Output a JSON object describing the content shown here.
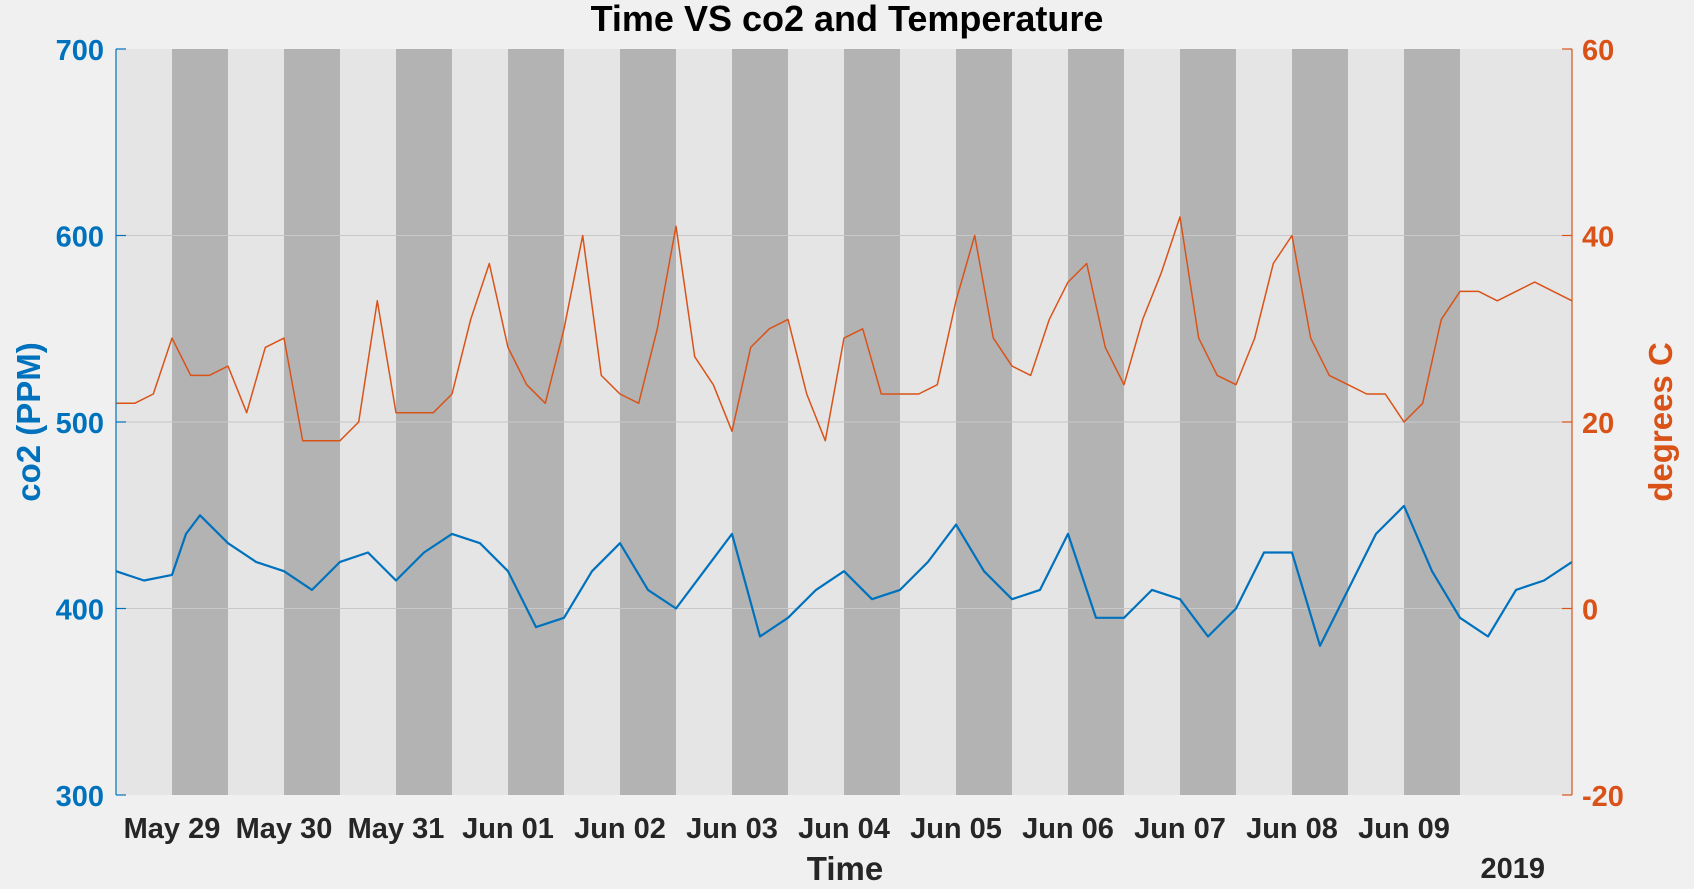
{
  "chart_data": {
    "type": "line",
    "title": "Time VS co2 and Temperature",
    "xlabel": "Time",
    "x_year_label": "2019",
    "x_range": [
      "2019-05-28 12:00",
      "2019-06-10 12:00"
    ],
    "x_ticks": [
      {
        "date": "2019-05-29",
        "label": "May 29"
      },
      {
        "date": "2019-05-30",
        "label": "May 30"
      },
      {
        "date": "2019-05-31",
        "label": "May 31"
      },
      {
        "date": "2019-06-01",
        "label": "Jun 01"
      },
      {
        "date": "2019-06-02",
        "label": "Jun 02"
      },
      {
        "date": "2019-06-03",
        "label": "Jun 03"
      },
      {
        "date": "2019-06-04",
        "label": "Jun 04"
      },
      {
        "date": "2019-06-05",
        "label": "Jun 05"
      },
      {
        "date": "2019-06-06",
        "label": "Jun 06"
      },
      {
        "date": "2019-06-07",
        "label": "Jun 07"
      },
      {
        "date": "2019-06-08",
        "label": "Jun 08"
      },
      {
        "date": "2019-06-09",
        "label": "Jun 09"
      }
    ],
    "night_shading": [
      [
        "2019-05-29 00:00",
        "2019-05-29 12:00"
      ],
      [
        "2019-05-30 00:00",
        "2019-05-30 12:00"
      ],
      [
        "2019-05-31 00:00",
        "2019-05-31 12:00"
      ],
      [
        "2019-06-01 00:00",
        "2019-06-01 12:00"
      ],
      [
        "2019-06-02 00:00",
        "2019-06-02 12:00"
      ],
      [
        "2019-06-03 00:00",
        "2019-06-03 12:00"
      ],
      [
        "2019-06-04 00:00",
        "2019-06-04 12:00"
      ],
      [
        "2019-06-05 00:00",
        "2019-06-05 12:00"
      ],
      [
        "2019-06-06 00:00",
        "2019-06-06 12:00"
      ],
      [
        "2019-06-07 00:00",
        "2019-06-07 12:00"
      ],
      [
        "2019-06-08 00:00",
        "2019-06-08 12:00"
      ],
      [
        "2019-06-09 00:00",
        "2019-06-09 12:00"
      ]
    ],
    "y_left": {
      "label": "co2 (PPM)",
      "lim": [
        300,
        700
      ],
      "ticks": [
        300,
        400,
        500,
        600,
        700
      ],
      "color": "#0072bd"
    },
    "y_right": {
      "label": "degrees C",
      "lim": [
        -20,
        60
      ],
      "ticks": [
        -20,
        0,
        20,
        40,
        60
      ],
      "color": "#d95319"
    },
    "grid": true,
    "colors": {
      "day_band": "#e5e5e5",
      "night_band": "#b3b3b3",
      "grid": "#c8c8c8"
    },
    "series": [
      {
        "name": "co2",
        "axis": "left",
        "x": [
          "2019-05-28 12:00",
          "2019-05-28 18:00",
          "2019-05-29 00:00",
          "2019-05-29 03:00",
          "2019-05-29 06:00",
          "2019-05-29 12:00",
          "2019-05-29 18:00",
          "2019-05-30 00:00",
          "2019-05-30 06:00",
          "2019-05-30 12:00",
          "2019-05-30 18:00",
          "2019-05-31 00:00",
          "2019-05-31 06:00",
          "2019-05-31 12:00",
          "2019-05-31 18:00",
          "2019-06-01 00:00",
          "2019-06-01 06:00",
          "2019-06-01 12:00",
          "2019-06-01 18:00",
          "2019-06-02 00:00",
          "2019-06-02 06:00",
          "2019-06-02 12:00",
          "2019-06-02 18:00",
          "2019-06-03 00:00",
          "2019-06-03 06:00",
          "2019-06-03 12:00",
          "2019-06-03 18:00",
          "2019-06-04 00:00",
          "2019-06-04 06:00",
          "2019-06-04 12:00",
          "2019-06-04 18:00",
          "2019-06-05 00:00",
          "2019-06-05 06:00",
          "2019-06-05 12:00",
          "2019-06-05 18:00",
          "2019-06-06 00:00",
          "2019-06-06 06:00",
          "2019-06-06 12:00",
          "2019-06-06 18:00",
          "2019-06-07 00:00",
          "2019-06-07 06:00",
          "2019-06-07 12:00",
          "2019-06-07 18:00",
          "2019-06-08 00:00",
          "2019-06-08 06:00",
          "2019-06-08 12:00",
          "2019-06-08 18:00",
          "2019-06-09 00:00",
          "2019-06-09 06:00",
          "2019-06-09 12:00",
          "2019-06-09 18:00",
          "2019-06-10 00:00",
          "2019-06-10 06:00",
          "2019-06-10 12:00"
        ],
        "values": [
          420,
          415,
          418,
          440,
          450,
          435,
          425,
          420,
          410,
          425,
          430,
          415,
          430,
          440,
          435,
          420,
          390,
          395,
          420,
          435,
          410,
          400,
          420,
          440,
          385,
          395,
          410,
          420,
          405,
          410,
          425,
          445,
          420,
          405,
          410,
          440,
          395,
          395,
          410,
          405,
          385,
          400,
          430,
          430,
          380,
          410,
          440,
          455,
          420,
          395,
          385,
          410,
          415,
          425
        ]
      },
      {
        "name": "degrees C",
        "axis": "right",
        "x": [
          "2019-05-28 12:00",
          "2019-05-28 16:00",
          "2019-05-28 20:00",
          "2019-05-29 00:00",
          "2019-05-29 04:00",
          "2019-05-29 08:00",
          "2019-05-29 12:00",
          "2019-05-29 16:00",
          "2019-05-29 20:00",
          "2019-05-30 00:00",
          "2019-05-30 04:00",
          "2019-05-30 08:00",
          "2019-05-30 12:00",
          "2019-05-30 16:00",
          "2019-05-30 20:00",
          "2019-05-31 00:00",
          "2019-05-31 04:00",
          "2019-05-31 08:00",
          "2019-05-31 12:00",
          "2019-05-31 16:00",
          "2019-05-31 20:00",
          "2019-06-01 00:00",
          "2019-06-01 04:00",
          "2019-06-01 08:00",
          "2019-06-01 12:00",
          "2019-06-01 16:00",
          "2019-06-01 20:00",
          "2019-06-02 00:00",
          "2019-06-02 04:00",
          "2019-06-02 08:00",
          "2019-06-02 12:00",
          "2019-06-02 16:00",
          "2019-06-02 20:00",
          "2019-06-03 00:00",
          "2019-06-03 04:00",
          "2019-06-03 08:00",
          "2019-06-03 12:00",
          "2019-06-03 16:00",
          "2019-06-03 20:00",
          "2019-06-04 00:00",
          "2019-06-04 04:00",
          "2019-06-04 08:00",
          "2019-06-04 12:00",
          "2019-06-04 16:00",
          "2019-06-04 20:00",
          "2019-06-05 00:00",
          "2019-06-05 04:00",
          "2019-06-05 08:00",
          "2019-06-05 12:00",
          "2019-06-05 16:00",
          "2019-06-05 20:00",
          "2019-06-06 00:00",
          "2019-06-06 04:00",
          "2019-06-06 08:00",
          "2019-06-06 12:00",
          "2019-06-06 16:00",
          "2019-06-06 20:00",
          "2019-06-07 00:00",
          "2019-06-07 04:00",
          "2019-06-07 08:00",
          "2019-06-07 12:00",
          "2019-06-07 16:00",
          "2019-06-07 20:00",
          "2019-06-08 00:00",
          "2019-06-08 04:00",
          "2019-06-08 08:00",
          "2019-06-08 12:00",
          "2019-06-08 16:00",
          "2019-06-08 20:00",
          "2019-06-09 00:00",
          "2019-06-09 04:00",
          "2019-06-09 08:00",
          "2019-06-09 12:00",
          "2019-06-09 16:00",
          "2019-06-09 20:00",
          "2019-06-10 00:00",
          "2019-06-10 04:00",
          "2019-06-10 08:00",
          "2019-06-10 12:00"
        ],
        "values": [
          22,
          22,
          23,
          29,
          25,
          25,
          26,
          21,
          28,
          29,
          18,
          18,
          18,
          20,
          33,
          21,
          21,
          21,
          23,
          31,
          37,
          28,
          24,
          22,
          30,
          40,
          25,
          23,
          22,
          30,
          41,
          27,
          24,
          19,
          28,
          30,
          31,
          23,
          18,
          29,
          30,
          23,
          23,
          23,
          24,
          33,
          40,
          29,
          26,
          25,
          31,
          35,
          37,
          28,
          24,
          31,
          36,
          42,
          29,
          25,
          24,
          29,
          37,
          40,
          29,
          25,
          24,
          23,
          23,
          20,
          22,
          31,
          34,
          34,
          33,
          34,
          35,
          34,
          33
        ]
      }
    ]
  }
}
